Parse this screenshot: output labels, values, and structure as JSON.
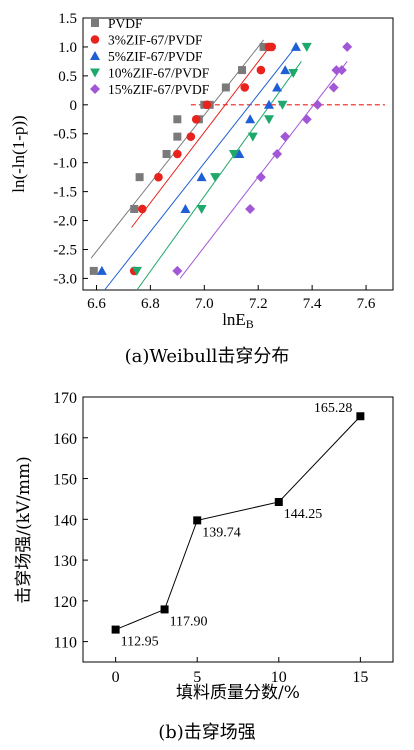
{
  "figure_a": {
    "caption": "(a)Weibull击穿分布",
    "ylabel": "ln(-ln(1-p))",
    "xlabel_main": "lnE",
    "xlabel_sub": "B",
    "xticks": [
      "6.6",
      "6.8",
      "7.0",
      "7.2",
      "7.4",
      "7.6"
    ],
    "yticks": [
      "1.5",
      "1.0",
      "0.5",
      "0",
      "-0.5",
      "-1.0",
      "-1.5",
      "-2.0",
      "-2.5",
      "-3.0"
    ]
  },
  "figure_b": {
    "caption": "(b)击穿场强",
    "ylabel": "击穿场强/(kV/mm)",
    "xlabel": "填料质量分数/%",
    "xticks": [
      "0",
      "5",
      "10",
      "15"
    ],
    "yticks": [
      "110",
      "120",
      "130",
      "140",
      "150",
      "160",
      "170"
    ]
  },
  "chart_data": [
    {
      "type": "scatter",
      "xlabel": "lnE_B",
      "ylabel": "ln(-ln(1-p))",
      "xlim": [
        6.55,
        7.7
      ],
      "ylim": [
        -3.2,
        1.5
      ],
      "reference_line": {
        "y": 0,
        "style": "dashed",
        "color": "#e8221c"
      },
      "legend_position": "top-left",
      "series": [
        {
          "name": "PVDF",
          "color": "#7a7a7a",
          "marker": "square",
          "x": [
            6.59,
            6.74,
            6.76,
            6.86,
            6.9,
            6.9,
            6.98,
            7.0,
            7.02,
            7.08,
            7.14,
            7.22
          ],
          "y": [
            -2.87,
            -1.8,
            -1.25,
            -0.85,
            -0.55,
            -0.25,
            -0.25,
            0.0,
            0.0,
            0.3,
            0.6,
            1.0
          ],
          "fit": {
            "x": [
              6.58,
              7.22
            ],
            "y": [
              -2.65,
              1.12
            ]
          }
        },
        {
          "name": "3%ZIF-67/PVDF",
          "color": "#e8221c",
          "marker": "circle",
          "x": [
            6.74,
            6.77,
            6.83,
            6.9,
            6.95,
            6.97,
            7.01,
            7.15,
            7.21,
            7.24,
            7.25
          ],
          "y": [
            -2.87,
            -1.8,
            -1.25,
            -0.85,
            -0.55,
            -0.25,
            0.0,
            0.3,
            0.6,
            1.0,
            1.0
          ],
          "fit": {
            "x": [
              6.73,
              7.25
            ],
            "y": [
              -2.12,
              1.05
            ]
          }
        },
        {
          "name": "5%ZIF-67/PVDF",
          "color": "#1e5fd6",
          "marker": "triangle",
          "x": [
            6.62,
            6.93,
            6.99,
            7.13,
            7.17,
            7.24,
            7.27,
            7.3,
            7.34
          ],
          "y": [
            -2.87,
            -1.8,
            -1.25,
            -0.85,
            -0.25,
            0.0,
            0.3,
            0.6,
            1.0
          ],
          "fit": {
            "x": [
              6.63,
              7.33
            ],
            "y": [
              -3.2,
              0.95
            ]
          }
        },
        {
          "name": "10%ZIF-67/PVDF",
          "color": "#1fa86b",
          "marker": "triangle-down",
          "x": [
            6.75,
            6.99,
            7.04,
            7.11,
            7.18,
            7.24,
            7.29,
            7.33,
            7.38
          ],
          "y": [
            -2.87,
            -1.8,
            -1.25,
            -0.85,
            -0.55,
            -0.25,
            0.0,
            0.55,
            1.0
          ],
          "fit": {
            "x": [
              6.75,
              7.36
            ],
            "y": [
              -3.2,
              0.75
            ]
          }
        },
        {
          "name": "15%ZIF-67/PVDF",
          "color": "#a257d6",
          "marker": "diamond",
          "x": [
            6.9,
            7.17,
            7.21,
            7.27,
            7.3,
            7.38,
            7.42,
            7.48,
            7.49,
            7.51,
            7.53
          ],
          "y": [
            -2.87,
            -1.8,
            -1.25,
            -0.85,
            -0.55,
            -0.25,
            0.0,
            0.3,
            0.6,
            0.6,
            1.0
          ],
          "fit": {
            "x": [
              6.91,
              7.53
            ],
            "y": [
              -3.0,
              0.75
            ]
          }
        }
      ]
    },
    {
      "type": "line",
      "xlabel": "填料质量分数/%",
      "ylabel": "击穿场强/(kV/mm)",
      "xlim": [
        -2,
        17
      ],
      "ylim": [
        105,
        170
      ],
      "series": [
        {
          "color": "#000000",
          "marker": "square",
          "x": [
            0,
            3,
            5,
            10,
            15
          ],
          "values": [
            112.95,
            117.9,
            139.74,
            144.25,
            165.28
          ],
          "labels": [
            "112.95",
            "117.90",
            "139.74",
            "144.25",
            "165.28"
          ]
        }
      ]
    }
  ]
}
